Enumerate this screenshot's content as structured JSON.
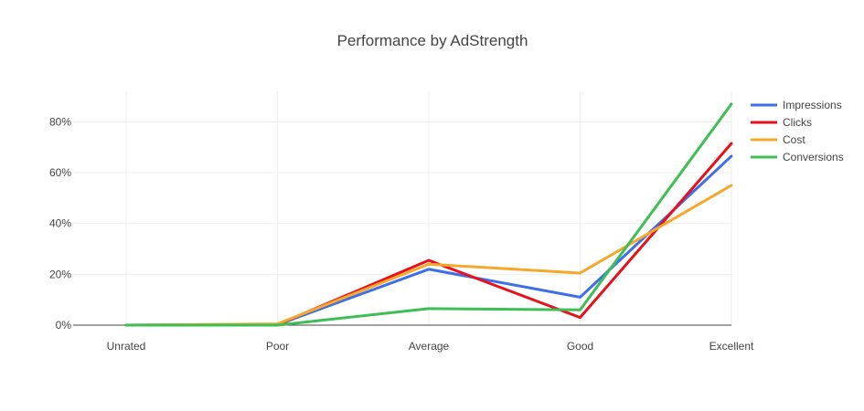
{
  "chart_data": {
    "type": "line",
    "title": "Performance by AdStrength",
    "xlabel": "",
    "ylabel": "",
    "categories": [
      "Unrated",
      "Poor",
      "Average",
      "Good",
      "Excellent"
    ],
    "y_tick_values": [
      0,
      20,
      40,
      60,
      80
    ],
    "y_tick_labels": [
      "0%",
      "20%",
      "40%",
      "60%",
      "80%"
    ],
    "ylim": [
      0,
      92
    ],
    "grid": true,
    "legend_position": "top-right",
    "series": [
      {
        "name": "Impressions",
        "color": "#3d6fe8",
        "values": [
          0,
          0.2,
          22,
          11,
          66.5
        ]
      },
      {
        "name": "Clicks",
        "color": "#e8101a",
        "values": [
          0,
          0.2,
          25.5,
          3,
          71.5
        ]
      },
      {
        "name": "Cost",
        "color": "#f5a82a",
        "values": [
          0,
          0.5,
          24,
          20.5,
          55
        ]
      },
      {
        "name": "Conversions",
        "color": "#3dbf55",
        "values": [
          0,
          0,
          6.5,
          6,
          87
        ]
      }
    ]
  }
}
